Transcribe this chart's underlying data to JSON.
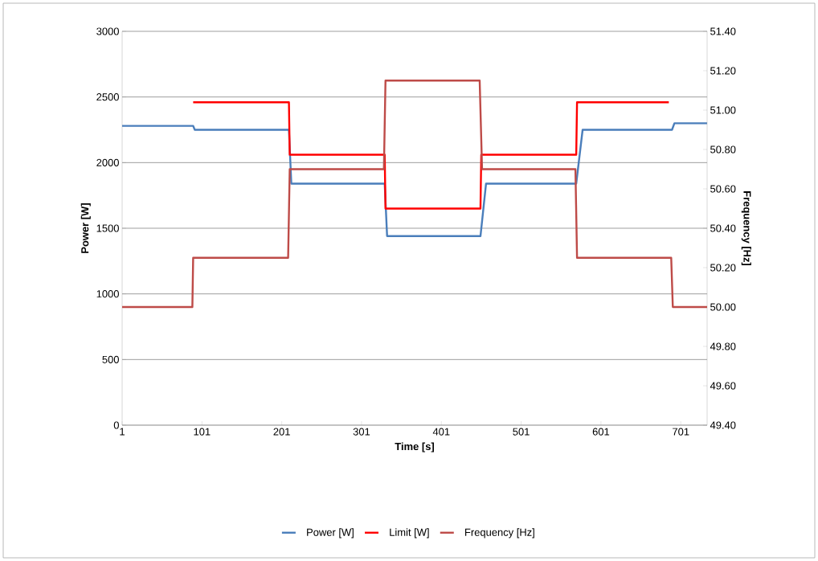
{
  "chart_data": {
    "type": "line",
    "xlabel": "Time [s]",
    "ylabel": "Power [W]",
    "y2label": "Frequency [Hz]",
    "xlim": [
      1,
      734
    ],
    "xticks": [
      1,
      101,
      201,
      301,
      401,
      501,
      601,
      701
    ],
    "ylim": [
      0,
      3000
    ],
    "yticks": [
      0,
      500,
      1000,
      1500,
      2000,
      2500,
      3000
    ],
    "y2lim": [
      49.4,
      51.4
    ],
    "y2ticks": [
      {
        "value": 49.4,
        "label": "49.40"
      },
      {
        "value": 49.6,
        "label": "49.60"
      },
      {
        "value": 49.8,
        "label": "49.80"
      },
      {
        "value": 50.0,
        "label": "50.00"
      },
      {
        "value": 50.2,
        "label": "50.20"
      },
      {
        "value": 50.4,
        "label": "50.40"
      },
      {
        "value": 50.6,
        "label": "50.60"
      },
      {
        "value": 50.8,
        "label": "50.80"
      },
      {
        "value": 51.0,
        "label": "51.00"
      },
      {
        "value": 51.2,
        "label": "51.20"
      },
      {
        "value": 51.4,
        "label": "51.40"
      }
    ],
    "grid": "y",
    "legend": "bottom",
    "series": [
      {
        "name": "Power [W]",
        "color": "#4a7ebb",
        "x": [
          1,
          90,
          92,
          210,
          213,
          330,
          333,
          450,
          457,
          570,
          578,
          690,
          693,
          734
        ],
        "values": [
          2280,
          2280,
          2250,
          2250,
          1840,
          1840,
          1440,
          1440,
          1840,
          1840,
          2250,
          2250,
          2300,
          2300
        ]
      },
      {
        "name": "Limit [W]",
        "color": "#ff0000",
        "x": [
          90,
          210,
          211,
          330,
          331,
          450,
          451,
          570,
          571,
          686
        ],
        "values": [
          2460,
          2460,
          2060,
          2060,
          1650,
          1650,
          2060,
          2060,
          2460,
          2460
        ]
      },
      {
        "name": "Frequency [Hz]",
        "color": "#be4b48",
        "axis": "y2",
        "x": [
          1,
          89,
          90,
          209,
          211,
          329,
          331,
          449,
          452,
          569,
          571,
          689,
          691,
          734
        ],
        "values": [
          50.0,
          50.0,
          50.25,
          50.25,
          50.7,
          50.7,
          51.15,
          51.15,
          50.7,
          50.7,
          50.25,
          50.25,
          50.0,
          50.0
        ]
      }
    ]
  }
}
